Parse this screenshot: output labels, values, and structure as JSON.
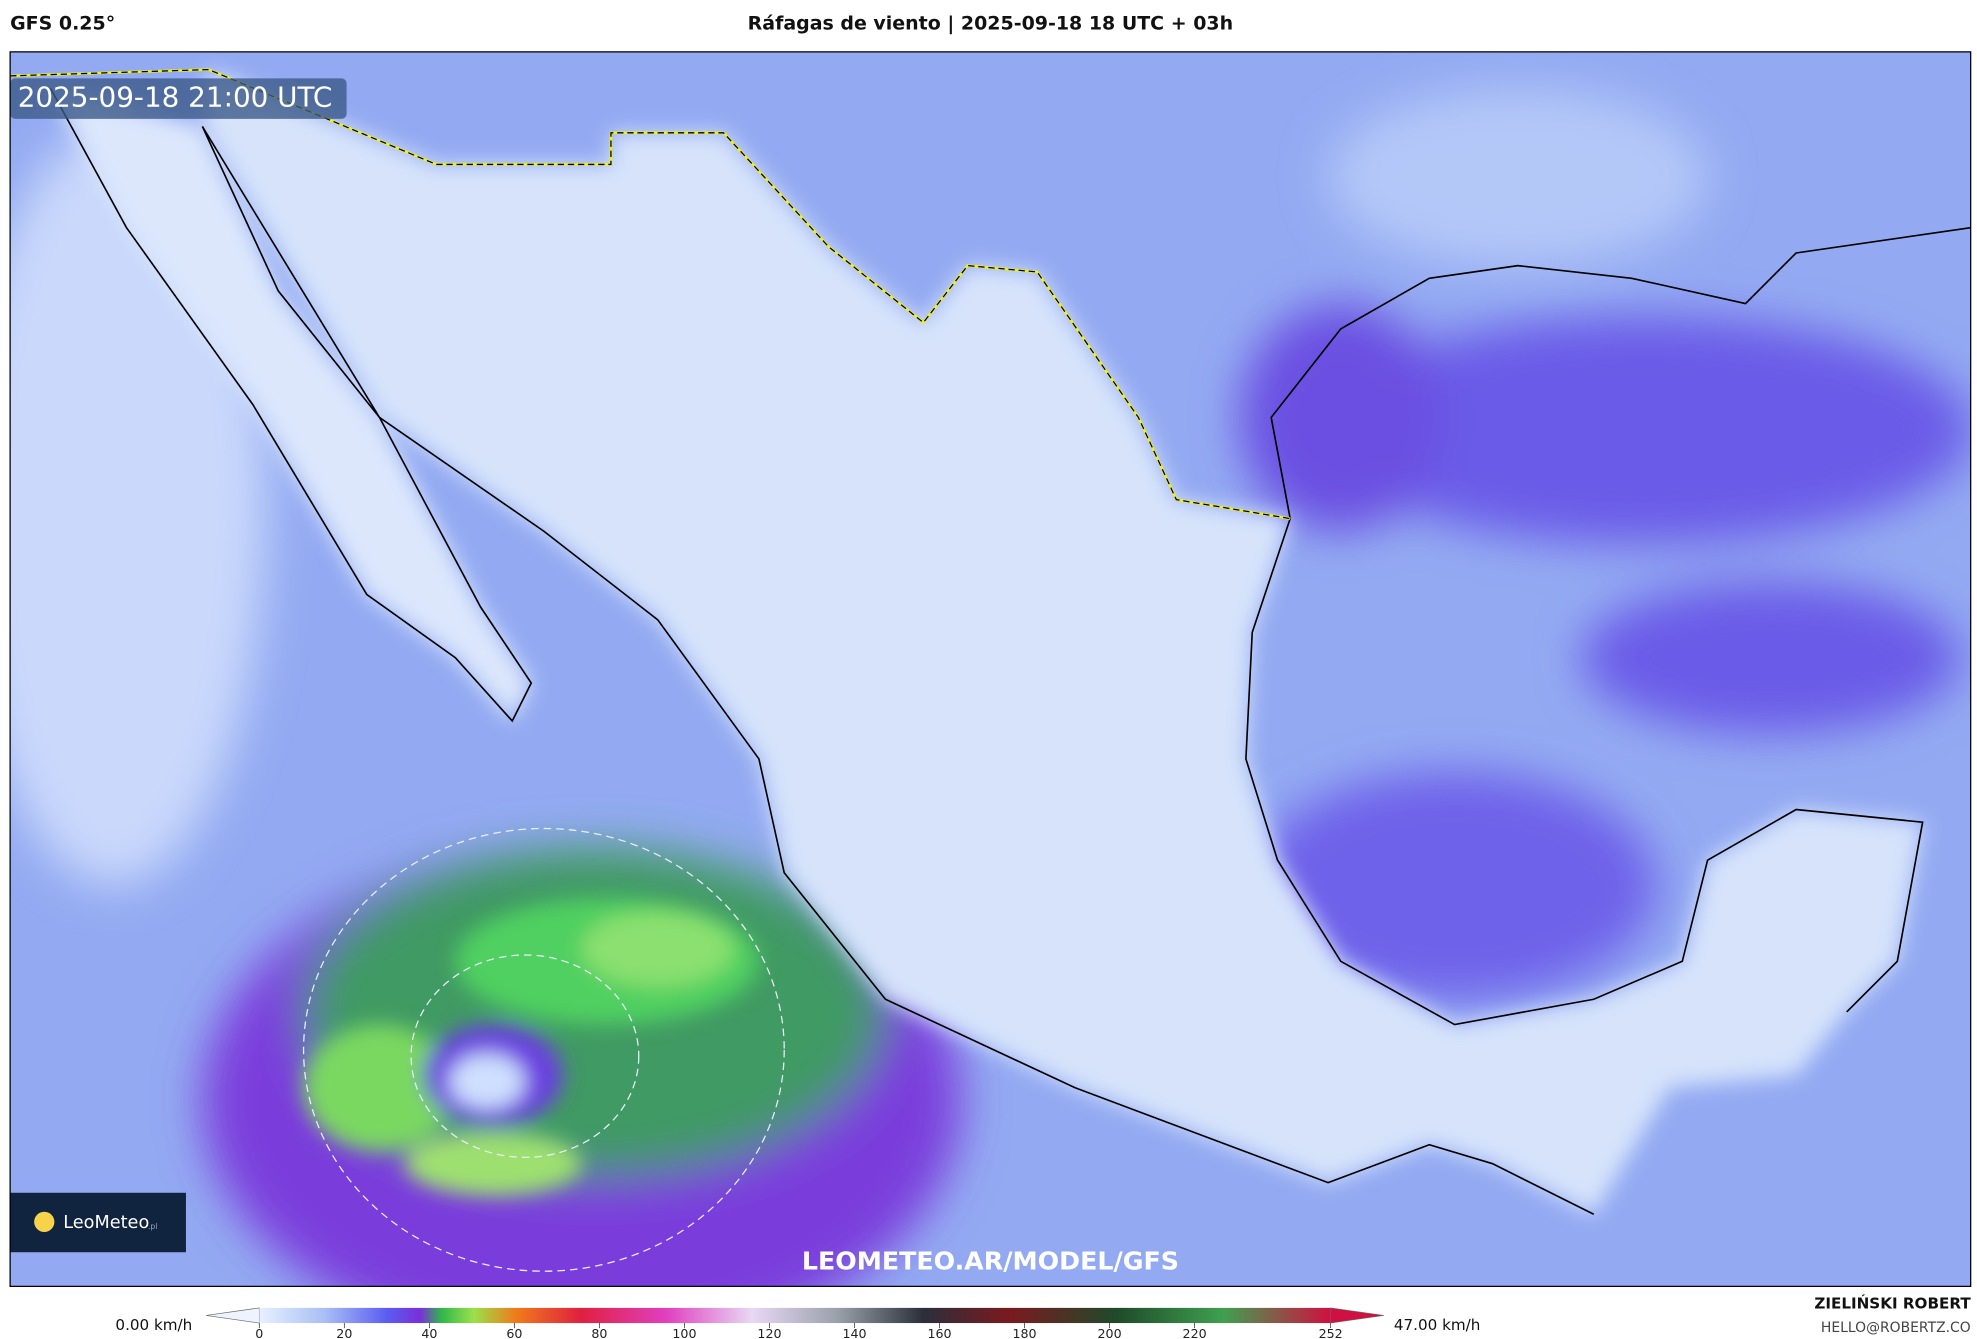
{
  "header": {
    "model": "GFS 0.25°",
    "title": "Ráfagas de viento | 2025-09-18 18 UTC + 03h"
  },
  "map": {
    "timestamp": "2025-09-18 21:00 UTC",
    "watermark": "LEOMETEO.AR/MODEL/GFS",
    "logo": "LeoMeteo",
    "logo_suffix": ".pl"
  },
  "colorbar": {
    "min_label": "0.00 km/h",
    "max_label": "47.00 km/h",
    "range": [
      0,
      252
    ],
    "ticks": [
      0,
      20,
      40,
      60,
      80,
      100,
      120,
      140,
      160,
      180,
      200,
      220,
      252
    ]
  },
  "footer": {
    "author": "ZIELIŃSKI ROBERT",
    "email": "HELLO@ROBERTZ.CO"
  }
}
